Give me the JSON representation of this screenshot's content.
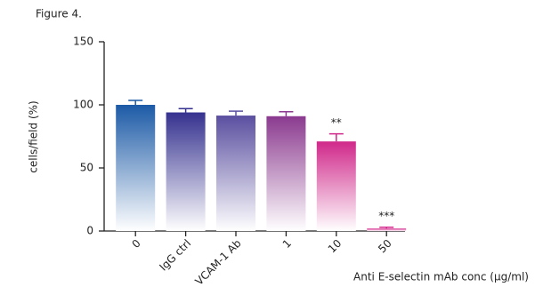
{
  "chart_data": {
    "type": "bar",
    "figure_label": "Figure 4.",
    "ylabel": "cells/field (%)",
    "xlabel": "Anti E-selectin mAb conc (μg/ml)",
    "categories": [
      "0",
      "IgG ctrl",
      "VCAM-1 Ab",
      "1",
      "10",
      "50"
    ],
    "values": [
      100,
      94,
      91.5,
      91,
      71,
      2
    ],
    "errors": [
      3.5,
      3,
      3.5,
      3.5,
      6,
      1
    ],
    "annotations": [
      null,
      null,
      null,
      null,
      "**",
      "***"
    ],
    "colors": [
      "#1c5aa6",
      "#35318f",
      "#5a4fa0",
      "#8b3a8f",
      "#d0288a",
      "#d4288c"
    ],
    "ylim": [
      0,
      150
    ],
    "yticks": [
      0,
      50,
      100,
      150
    ]
  }
}
